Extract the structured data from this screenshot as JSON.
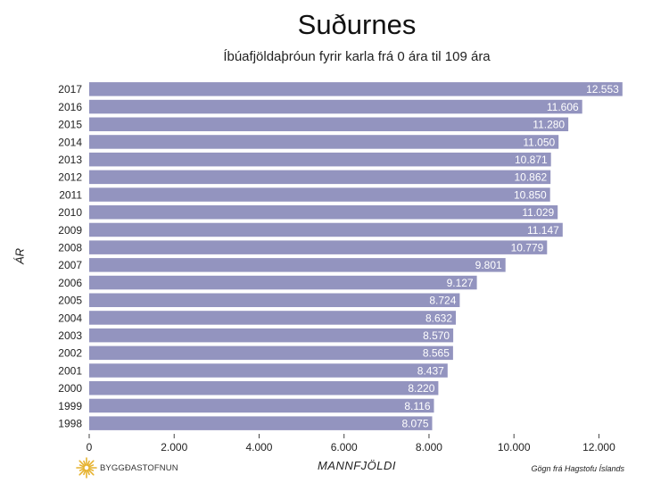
{
  "chart_data": {
    "type": "bar",
    "orientation": "horizontal",
    "title": "Suðurnes",
    "subtitle": "Íbúafjöldaþróun fyrir karla frá 0 ára til 109 ára",
    "xlabel": "MANNFJÖLDI",
    "ylabel": "ÁR",
    "categories": [
      "2017",
      "2016",
      "2015",
      "2014",
      "2013",
      "2012",
      "2011",
      "2010",
      "2009",
      "2008",
      "2007",
      "2006",
      "2005",
      "2004",
      "2003",
      "2002",
      "2001",
      "2000",
      "1999",
      "1998"
    ],
    "values": [
      12553,
      11606,
      11280,
      11050,
      10871,
      10862,
      10850,
      11029,
      11147,
      10779,
      9801,
      9127,
      8724,
      8632,
      8570,
      8565,
      8437,
      8220,
      8116,
      8075
    ],
    "value_labels": [
      "12.553",
      "11.606",
      "11.280",
      "11.050",
      "10.871",
      "10.862",
      "10.850",
      "11.029",
      "11.147",
      "10.779",
      "9.801",
      "9.127",
      "8.724",
      "8.632",
      "8.570",
      "8.565",
      "8.437",
      "8.220",
      "8.116",
      "8.075"
    ],
    "xticks": [
      0,
      2000,
      4000,
      6000,
      8000,
      10000,
      12000
    ],
    "xtick_labels": [
      "0",
      "2.000",
      "4.000",
      "6.000",
      "8.000",
      "10.000",
      "12.000"
    ],
    "xlim": [
      0,
      12600
    ],
    "grid": false,
    "bar_color": "#9394bf",
    "label_color": "#ffffff"
  },
  "footer": {
    "logo_text": "BYGGÐASTOFNUN",
    "logo_color": "#e6b22e",
    "source": "Gögn frá Hagstofu Íslands"
  }
}
